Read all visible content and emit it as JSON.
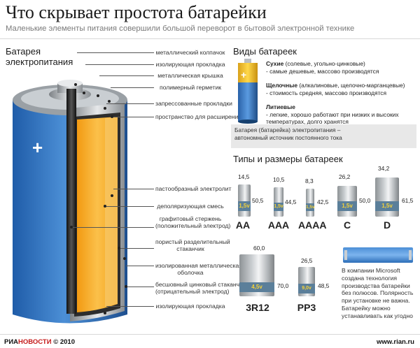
{
  "header": {
    "title": "Что скрывает простота батарейки",
    "subtitle": "Маленькие элементы питания совершили большой переворот в бытовой электронной технике"
  },
  "battery": {
    "title_line1": "Батарея",
    "title_line2": "электропитания",
    "plus_sign": "+",
    "callouts": [
      "металлический колпачок",
      "изолирующая прокладка",
      "металлическая крышка",
      "полимерный герметик",
      "запрессованные прокладки",
      "пространство для расширения",
      "пастообразный электролит",
      "деполяризующая смесь",
      "графитовый стержень",
      "(положительный электрод)",
      "пористый разделительный",
      "стаканчик",
      "изолированная металлическая",
      "оболочка",
      "бесшовный цинковый стаканчик",
      "(отрицательный электрод)",
      "изолирующая прокладка"
    ]
  },
  "types": {
    "title": "Виды батареек",
    "plus_sign": "+",
    "dry_name": "Сухие",
    "dry_sub": " (солевые, угольно-цинковые)",
    "dry_desc": "- самые дешевые, массово производятся",
    "alk_name": "Щелочные",
    "alk_sub": " (алкалиновые, щелочно-марганцевые)",
    "alk_desc": "- стоимость средняя, массово производятся",
    "li_name": "Литиевые",
    "li_desc1": "- легкие, хорошо работают при низких и высоких",
    "li_desc2": "температурах, долго хранятся",
    "note1": "Батарея (батарейка) электропитания –",
    "note2": "автономный источник постоянного тока"
  },
  "sizes": {
    "title": "Типы и размеры батареек",
    "cells": [
      {
        "name": "AA",
        "voltage": "1,5v",
        "width": "14,5",
        "height": "50,5"
      },
      {
        "name": "AAA",
        "voltage": "1,5v",
        "width": "10,5",
        "height": "44,5"
      },
      {
        "name": "AAAA",
        "voltage": "1,5v",
        "width": "8,3",
        "height": "42,5"
      },
      {
        "name": "C",
        "voltage": "1,5v",
        "width": "26,2",
        "height": "50,0"
      },
      {
        "name": "D",
        "voltage": "1,5v",
        "width": "34,2",
        "height": "61,5"
      },
      {
        "name": "3R12",
        "voltage": "4,5v",
        "width": "60,0",
        "height": "70,0"
      },
      {
        "name": "PP3",
        "voltage": "9,0v",
        "width": "26,5",
        "height": "48,5"
      }
    ],
    "microsoft_note": "В компании Microsoft создана технология производства батарейки без полюсов. Полярность при установке не важна. Батарейку можно устанавливать как угодно"
  },
  "footer": {
    "logo_ria": "РИА",
    "logo_novosti": "НОВОСТИ",
    "copyright": " © 2010",
    "site": "www.rian.ru"
  },
  "colors": {
    "blue": "#3a78c2",
    "orange": "#f5a623",
    "yellow": "#f5d23a",
    "label_blue": "#5b7f9a"
  }
}
